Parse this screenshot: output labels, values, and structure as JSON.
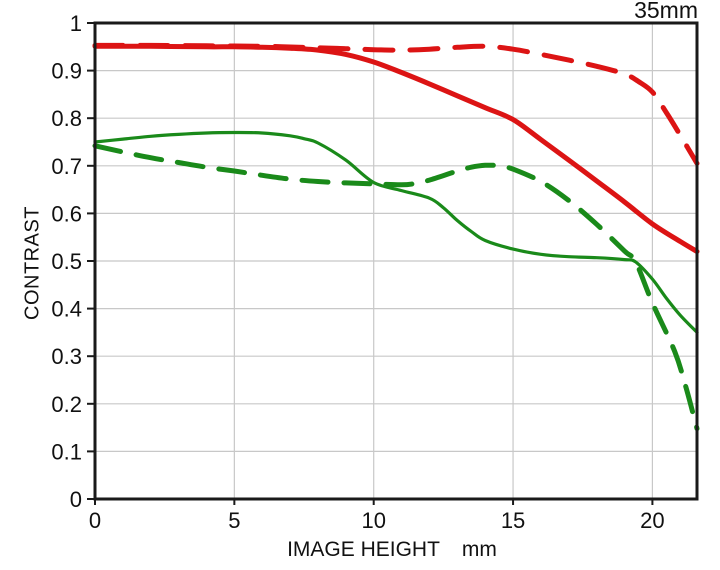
{
  "chart_data": {
    "type": "line",
    "title": "35mm",
    "xlabel": "IMAGE HEIGHT",
    "x_unit": "mm",
    "ylabel": "CONTRAST",
    "xlim": [
      0,
      21.6
    ],
    "ylim": [
      0,
      1
    ],
    "x_ticks": {
      "values": [
        0,
        5,
        10,
        15,
        20
      ],
      "labels": [
        "0",
        "5",
        "10",
        "15",
        "20"
      ]
    },
    "y_ticks": {
      "values": [
        0,
        0.1,
        0.2,
        0.3,
        0.4,
        0.5,
        0.6,
        0.7,
        0.8,
        0.9,
        1
      ],
      "labels": [
        "0",
        "0.1",
        "0.2",
        "0.3",
        "0.4",
        "0.5",
        "0.6",
        "0.7",
        "0.8",
        "0.9",
        "1"
      ]
    },
    "grid": {
      "show": true,
      "color": "#c8c8c8"
    },
    "axis_color": "#1a1a1a",
    "text_color": "#111111",
    "background": "#ffffff",
    "legend": {
      "show": false
    },
    "colors": {
      "red": "#dc1414",
      "green": "#1a8a1a"
    },
    "series": [
      {
        "name": "green-solid",
        "color": "#1a8a1a",
        "style": "solid",
        "width": 3.2,
        "points": [
          [
            0,
            0.75
          ],
          [
            1,
            0.756
          ],
          [
            2,
            0.762
          ],
          [
            3,
            0.766
          ],
          [
            4,
            0.769
          ],
          [
            5,
            0.77
          ],
          [
            6,
            0.769
          ],
          [
            7,
            0.763
          ],
          [
            7.5,
            0.757
          ],
          [
            8,
            0.748
          ],
          [
            9,
            0.712
          ],
          [
            10,
            0.665
          ],
          [
            11,
            0.648
          ],
          [
            12,
            0.632
          ],
          [
            12.5,
            0.612
          ],
          [
            13,
            0.585
          ],
          [
            13.5,
            0.562
          ],
          [
            14,
            0.543
          ],
          [
            15,
            0.525
          ],
          [
            16,
            0.514
          ],
          [
            17,
            0.509
          ],
          [
            18,
            0.507
          ],
          [
            19,
            0.503
          ],
          [
            19.4,
            0.498
          ],
          [
            20,
            0.462
          ],
          [
            20.5,
            0.422
          ],
          [
            21,
            0.386
          ],
          [
            21.6,
            0.35
          ]
        ]
      },
      {
        "name": "green-dashed",
        "color": "#1a8a1a",
        "style": "dashed",
        "width": 5,
        "points": [
          [
            0,
            0.742
          ],
          [
            1,
            0.729
          ],
          [
            2,
            0.717
          ],
          [
            3,
            0.707
          ],
          [
            4,
            0.697
          ],
          [
            5,
            0.689
          ],
          [
            6,
            0.68
          ],
          [
            7,
            0.672
          ],
          [
            8,
            0.667
          ],
          [
            9,
            0.664
          ],
          [
            10,
            0.662
          ],
          [
            11,
            0.66
          ],
          [
            11.5,
            0.663
          ],
          [
            12,
            0.67
          ],
          [
            13,
            0.689
          ],
          [
            13.5,
            0.697
          ],
          [
            14,
            0.701
          ],
          [
            14.5,
            0.7
          ],
          [
            15,
            0.693
          ],
          [
            16,
            0.667
          ],
          [
            17,
            0.627
          ],
          [
            18,
            0.577
          ],
          [
            19,
            0.521
          ],
          [
            19.4,
            0.498
          ],
          [
            20,
            0.412
          ],
          [
            20.8,
            0.31
          ],
          [
            21.2,
            0.235
          ],
          [
            21.6,
            0.148
          ]
        ]
      },
      {
        "name": "red-solid",
        "color": "#dc1414",
        "style": "solid",
        "width": 5,
        "points": [
          [
            0,
            0.951
          ],
          [
            2,
            0.951
          ],
          [
            4,
            0.95
          ],
          [
            5,
            0.95
          ],
          [
            6,
            0.949
          ],
          [
            7,
            0.947
          ],
          [
            8,
            0.943
          ],
          [
            9,
            0.934
          ],
          [
            10,
            0.918
          ],
          [
            11,
            0.896
          ],
          [
            12,
            0.872
          ],
          [
            13,
            0.847
          ],
          [
            14,
            0.822
          ],
          [
            15,
            0.797
          ],
          [
            16,
            0.755
          ],
          [
            17,
            0.712
          ],
          [
            18,
            0.668
          ],
          [
            19,
            0.624
          ],
          [
            20,
            0.578
          ],
          [
            21,
            0.541
          ],
          [
            21.6,
            0.52
          ]
        ]
      },
      {
        "name": "red-dashed",
        "color": "#dc1414",
        "style": "dashed",
        "width": 5,
        "points": [
          [
            0,
            0.953
          ],
          [
            2,
            0.953
          ],
          [
            4,
            0.952
          ],
          [
            6,
            0.951
          ],
          [
            8,
            0.948
          ],
          [
            9,
            0.946
          ],
          [
            10,
            0.944
          ],
          [
            11,
            0.943
          ],
          [
            12,
            0.945
          ],
          [
            13,
            0.949
          ],
          [
            14,
            0.951
          ],
          [
            15,
            0.945
          ],
          [
            16,
            0.934
          ],
          [
            17,
            0.922
          ],
          [
            18,
            0.909
          ],
          [
            19,
            0.893
          ],
          [
            19.5,
            0.877
          ],
          [
            20,
            0.855
          ],
          [
            20.5,
            0.812
          ],
          [
            21,
            0.764
          ],
          [
            21.6,
            0.705
          ]
        ]
      }
    ]
  }
}
